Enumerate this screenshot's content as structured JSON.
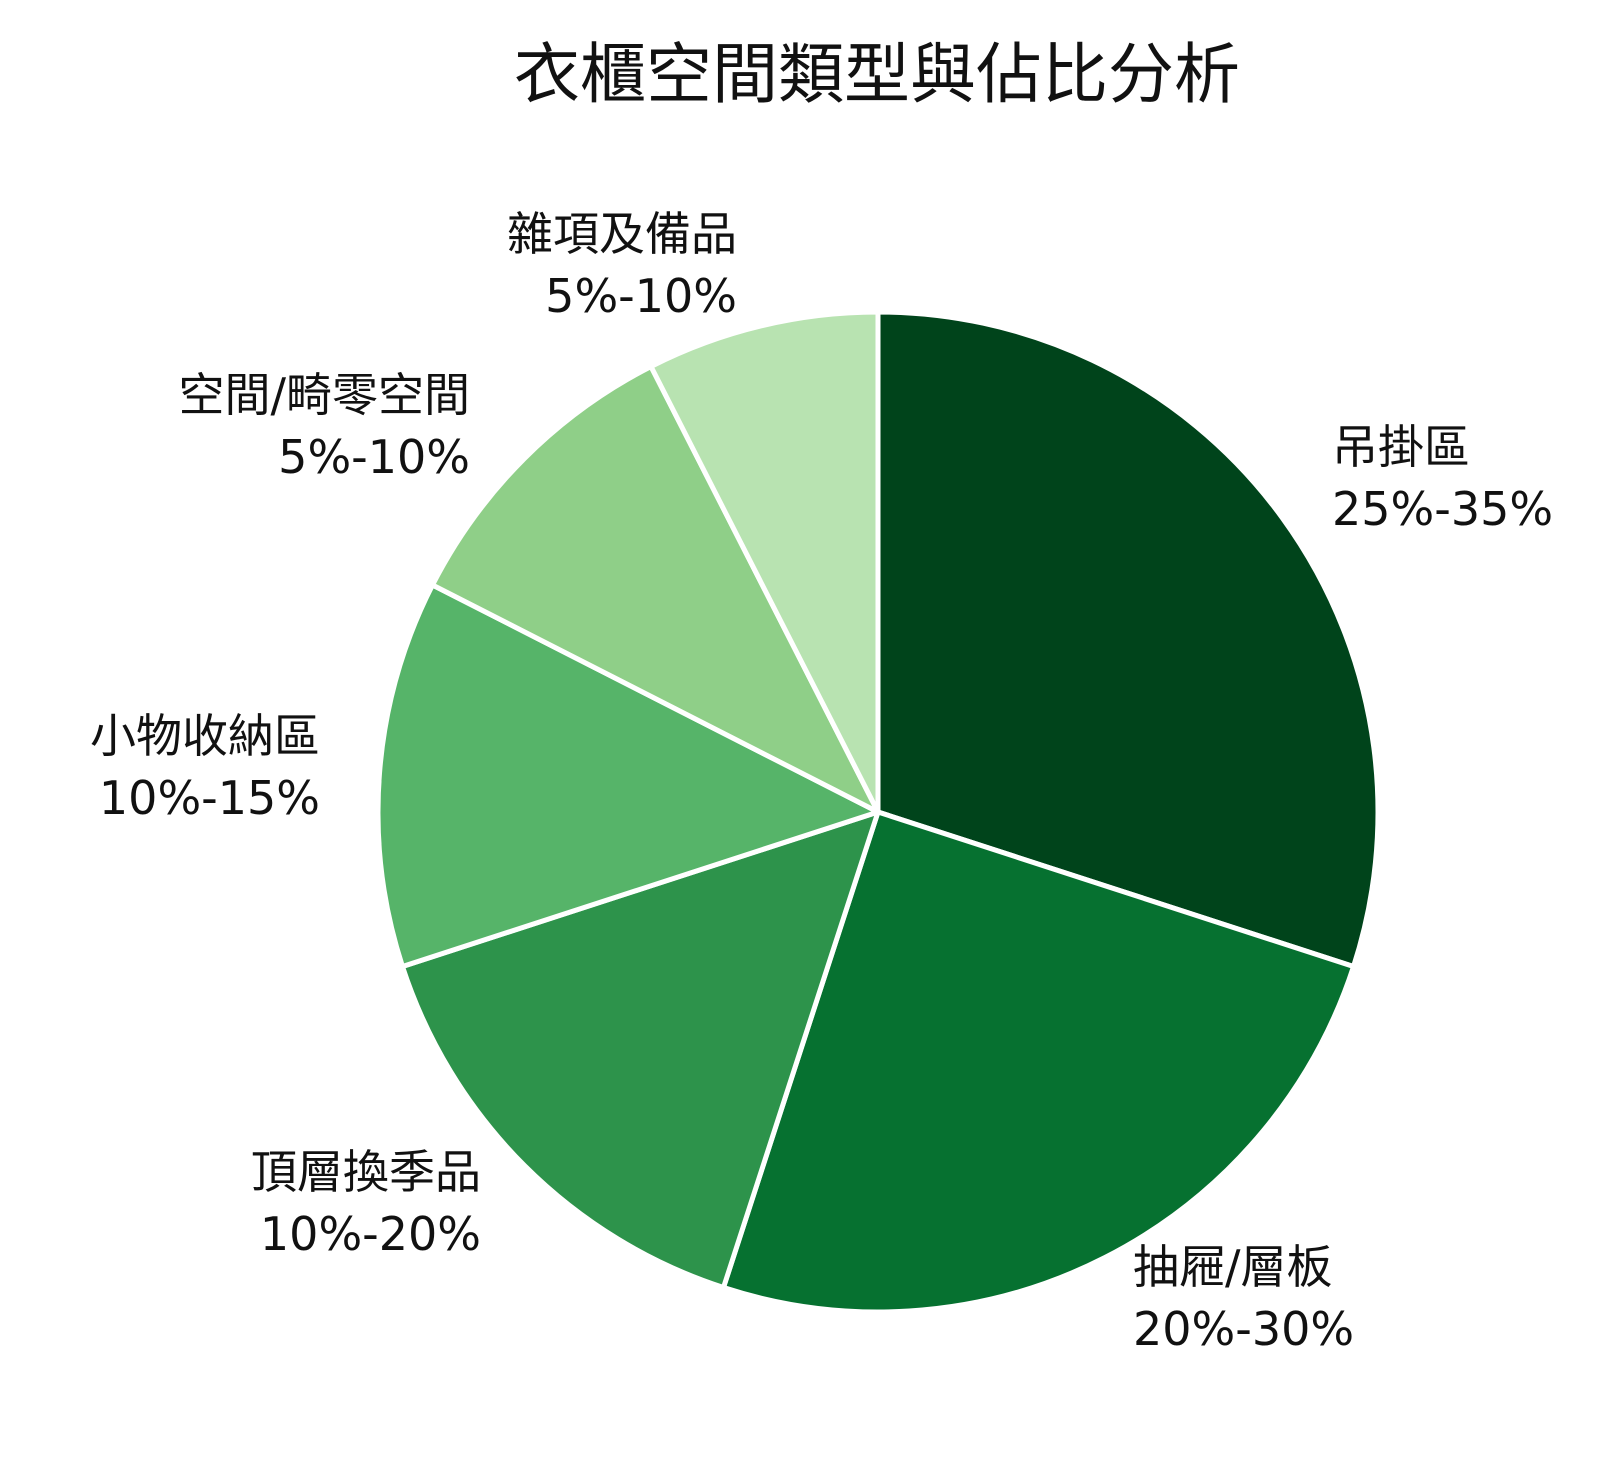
{
  "chart_data": {
    "type": "pie",
    "title": "衣櫃空間類型與佔比分析",
    "series": [
      {
        "name": "",
        "values": [
          {
            "label": "吊掛區",
            "range": "25%-35%",
            "value": 30,
            "color": "#00441b"
          },
          {
            "label": "抽屜/層板",
            "range": "20%-30%",
            "value": 25,
            "color": "#067130"
          },
          {
            "label": "頂層換季品",
            "range": "10%-20%",
            "value": 15,
            "color": "#2d934b"
          },
          {
            "label": "小物收納區",
            "range": "10%-15%",
            "value": 12.5,
            "color": "#56b469"
          },
          {
            "label": "空間/畸零空間",
            "range": "5%-10%",
            "value": 10,
            "color": "#8fcf88"
          },
          {
            "label": "雜項及備品",
            "range": "5%-10%",
            "value": 7.5,
            "color": "#b8e3b1"
          }
        ]
      }
    ],
    "start_angle": "12 o'clock",
    "direction": "clockwise",
    "legend": "none"
  }
}
